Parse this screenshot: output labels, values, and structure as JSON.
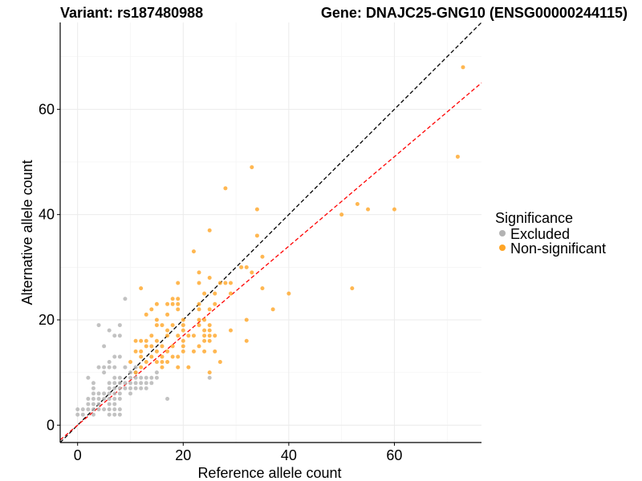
{
  "chart_data": {
    "type": "scatter",
    "title_left": "Variant: rs187480988",
    "title_right": "Gene: DNAJC25-GNG10 (ENSG00000244115)",
    "xlabel": "Reference allele count",
    "ylabel": "Alternative allele count",
    "xlim": [
      -3.3,
      76.5
    ],
    "ylim": [
      -3.3,
      76.5
    ],
    "xticks": [
      0,
      20,
      40,
      60
    ],
    "yticks": [
      0,
      20,
      40,
      60
    ],
    "grid": true,
    "legend": {
      "title": "Significance",
      "placement": "right",
      "entries": [
        {
          "label": "Excluded",
          "color": "#b3b3b3"
        },
        {
          "label": "Non-significant",
          "color": "#ffa526"
        }
      ]
    },
    "reference_lines": [
      {
        "name": "identity",
        "slope": 1.0,
        "intercept": 0,
        "color": "#000000",
        "dash": "dashed"
      },
      {
        "name": "fit",
        "slope": 0.85,
        "intercept": 0,
        "color": "#ff0000",
        "dash": "dashed"
      }
    ],
    "series": [
      {
        "name": "Excluded",
        "color": "#b3b3b3",
        "points": [
          [
            0,
            2
          ],
          [
            0,
            3
          ],
          [
            1,
            2
          ],
          [
            1,
            3
          ],
          [
            2,
            3
          ],
          [
            2,
            9
          ],
          [
            2,
            4
          ],
          [
            2,
            5
          ],
          [
            3,
            2
          ],
          [
            3,
            3
          ],
          [
            3,
            4
          ],
          [
            3,
            5
          ],
          [
            3,
            6
          ],
          [
            3,
            7
          ],
          [
            3,
            8
          ],
          [
            4,
            3
          ],
          [
            4,
            4
          ],
          [
            4,
            5
          ],
          [
            4,
            6
          ],
          [
            4,
            11
          ],
          [
            4,
            19
          ],
          [
            5,
            3
          ],
          [
            5,
            5
          ],
          [
            5,
            6
          ],
          [
            5,
            10
          ],
          [
            5,
            11
          ],
          [
            5,
            15
          ],
          [
            6,
            2
          ],
          [
            6,
            3
          ],
          [
            6,
            4
          ],
          [
            6,
            5
          ],
          [
            6,
            6
          ],
          [
            6,
            7
          ],
          [
            6,
            8
          ],
          [
            6,
            11
          ],
          [
            6,
            12
          ],
          [
            6,
            18
          ],
          [
            7,
            2
          ],
          [
            7,
            3
          ],
          [
            7,
            4
          ],
          [
            7,
            5
          ],
          [
            7,
            6
          ],
          [
            7,
            7
          ],
          [
            7,
            8
          ],
          [
            7,
            9
          ],
          [
            7,
            11
          ],
          [
            7,
            13
          ],
          [
            7,
            17
          ],
          [
            8,
            2
          ],
          [
            8,
            3
          ],
          [
            8,
            5
          ],
          [
            8,
            6
          ],
          [
            8,
            7
          ],
          [
            8,
            8
          ],
          [
            8,
            9
          ],
          [
            8,
            13
          ],
          [
            8,
            17
          ],
          [
            8,
            19
          ],
          [
            9,
            7
          ],
          [
            9,
            8
          ],
          [
            9,
            11
          ],
          [
            9,
            24
          ],
          [
            10,
            6
          ],
          [
            10,
            7
          ],
          [
            10,
            8
          ],
          [
            10,
            9
          ],
          [
            10,
            10
          ],
          [
            11,
            7
          ],
          [
            11,
            8
          ],
          [
            11,
            9
          ],
          [
            11,
            10
          ],
          [
            11,
            11
          ],
          [
            12,
            7
          ],
          [
            12,
            8
          ],
          [
            12,
            9
          ],
          [
            13,
            7
          ],
          [
            13,
            8
          ],
          [
            13,
            9
          ],
          [
            14,
            8
          ],
          [
            14,
            9
          ],
          [
            15,
            9
          ],
          [
            15,
            10
          ],
          [
            17,
            5
          ],
          [
            25,
            9
          ]
        ]
      },
      {
        "name": "Non-significant",
        "color": "#ffa526",
        "points": [
          [
            10,
            12
          ],
          [
            11,
            10
          ],
          [
            11,
            14
          ],
          [
            11,
            16
          ],
          [
            12,
            11
          ],
          [
            12,
            13
          ],
          [
            12,
            14
          ],
          [
            12,
            16
          ],
          [
            12,
            26
          ],
          [
            13,
            12
          ],
          [
            13,
            15
          ],
          [
            13,
            16
          ],
          [
            13,
            21
          ],
          [
            14,
            13
          ],
          [
            14,
            15
          ],
          [
            14,
            17
          ],
          [
            14,
            22
          ],
          [
            15,
            12
          ],
          [
            15,
            14
          ],
          [
            15,
            16
          ],
          [
            15,
            19
          ],
          [
            15,
            20
          ],
          [
            15,
            23
          ],
          [
            16,
            11
          ],
          [
            16,
            12
          ],
          [
            16,
            13
          ],
          [
            16,
            15
          ],
          [
            16,
            19
          ],
          [
            17,
            12
          ],
          [
            17,
            14
          ],
          [
            17,
            17
          ],
          [
            17,
            18
          ],
          [
            17,
            21
          ],
          [
            17,
            23
          ],
          [
            18,
            13
          ],
          [
            18,
            15
          ],
          [
            18,
            19
          ],
          [
            18,
            23
          ],
          [
            18,
            24
          ],
          [
            19,
            11
          ],
          [
            19,
            13
          ],
          [
            19,
            17
          ],
          [
            19,
            22
          ],
          [
            19,
            23
          ],
          [
            19,
            24
          ],
          [
            19,
            27
          ],
          [
            20,
            14
          ],
          [
            20,
            15
          ],
          [
            20,
            16
          ],
          [
            20,
            18
          ],
          [
            20,
            19
          ],
          [
            20,
            20
          ],
          [
            21,
            11
          ],
          [
            21,
            17
          ],
          [
            22,
            14
          ],
          [
            22,
            17
          ],
          [
            22,
            33
          ],
          [
            23,
            15
          ],
          [
            23,
            19
          ],
          [
            23,
            20
          ],
          [
            23,
            22
          ],
          [
            23,
            23
          ],
          [
            23,
            27
          ],
          [
            23,
            29
          ],
          [
            24,
            14
          ],
          [
            24,
            16
          ],
          [
            24,
            17
          ],
          [
            24,
            18
          ],
          [
            24,
            20
          ],
          [
            24,
            25
          ],
          [
            25,
            10
          ],
          [
            25,
            16
          ],
          [
            25,
            17
          ],
          [
            25,
            18
          ],
          [
            25,
            19
          ],
          [
            25,
            22
          ],
          [
            25,
            28
          ],
          [
            25,
            37
          ],
          [
            26,
            14
          ],
          [
            26,
            17
          ],
          [
            26,
            23
          ],
          [
            26,
            25
          ],
          [
            27,
            12
          ],
          [
            27,
            27
          ],
          [
            28,
            27
          ],
          [
            28,
            45
          ],
          [
            29,
            18
          ],
          [
            29,
            25
          ],
          [
            29,
            27
          ],
          [
            31,
            30
          ],
          [
            32,
            16
          ],
          [
            32,
            20
          ],
          [
            32,
            30
          ],
          [
            33,
            29
          ],
          [
            33,
            49
          ],
          [
            34,
            36
          ],
          [
            34,
            41
          ],
          [
            35,
            26
          ],
          [
            35,
            32
          ],
          [
            37,
            22
          ],
          [
            40,
            25
          ],
          [
            50,
            40
          ],
          [
            52,
            26
          ],
          [
            53,
            42
          ],
          [
            55,
            41
          ],
          [
            60,
            41
          ],
          [
            72,
            51
          ],
          [
            73,
            68
          ]
        ]
      }
    ]
  }
}
